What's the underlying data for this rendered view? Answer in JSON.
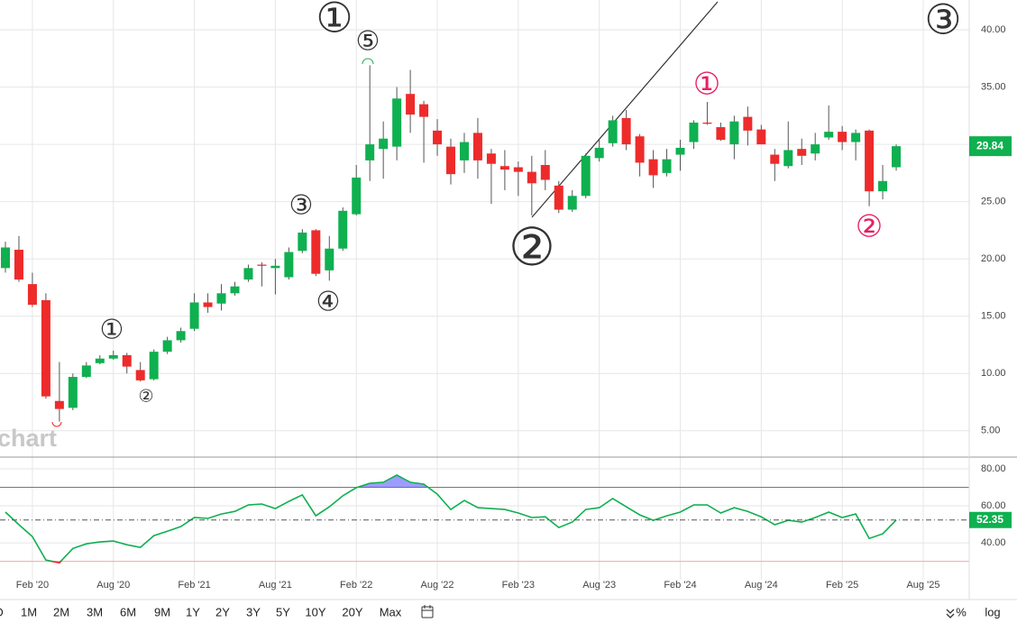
{
  "chart_data": {
    "type": "candlestick",
    "categories": [
      null,
      null,
      "Feb '20",
      null,
      null,
      null,
      null,
      null,
      "Aug '20",
      null,
      null,
      null,
      null,
      null,
      "Feb '21",
      null,
      null,
      null,
      null,
      null,
      "Aug '21",
      null,
      null,
      null,
      null,
      null,
      "Feb '22",
      null,
      null,
      null,
      null,
      null,
      "Aug '22",
      null,
      null,
      null,
      null,
      null,
      "Feb '23",
      null,
      null,
      null,
      null,
      null,
      "Aug '23",
      null,
      null,
      null,
      null,
      null,
      "Feb '24",
      null,
      null,
      null,
      null,
      null,
      "Aug '24",
      null,
      null,
      null,
      null,
      null,
      "Feb '25",
      null,
      null,
      null,
      null,
      null,
      "Aug '25"
    ],
    "open": [
      19.2,
      20.8,
      17.8,
      16.4,
      7.6,
      7.0,
      9.7,
      10.9,
      11.3,
      11.6,
      10.3,
      9.5,
      11.9,
      12.9,
      13.9,
      16.2,
      16.1,
      17.0,
      18.2,
      19.5,
      19.2,
      18.4,
      20.7,
      22.5,
      19.0,
      20.9,
      23.9,
      28.6,
      29.6,
      29.8,
      34.4,
      33.5,
      31.2,
      29.8,
      28.6,
      31.0,
      29.2,
      28.1,
      28.0,
      27.6,
      28.2,
      26.4,
      24.3,
      25.5,
      28.8,
      30.1,
      32.3,
      30.7,
      28.7,
      27.5,
      29.1,
      30.2,
      31.9,
      31.5,
      30.0,
      32.4,
      31.3,
      29.1,
      28.1,
      29.6,
      29.2,
      30.6,
      31.1,
      30.2,
      31.2,
      25.9,
      28.0,
      null,
      null
    ],
    "high": [
      21.5,
      22.0,
      18.8,
      17.0,
      11.0,
      10.0,
      11.0,
      11.6,
      12.0,
      11.8,
      11.0,
      12.1,
      13.2,
      14.0,
      17.0,
      17.0,
      17.8,
      18.0,
      19.5,
      19.7,
      20.0,
      21.0,
      22.6,
      22.6,
      22.0,
      24.5,
      28.2,
      36.9,
      32.0,
      35.0,
      36.5,
      33.8,
      32.2,
      30.5,
      31.0,
      32.3,
      29.6,
      29.5,
      28.5,
      29.0,
      29.5,
      26.8,
      26.0,
      29.2,
      30.4,
      32.5,
      33.0,
      30.9,
      29.5,
      29.6,
      30.4,
      32.1,
      33.7,
      31.9,
      32.5,
      33.3,
      31.7,
      29.6,
      32.0,
      30.5,
      31.0,
      33.4,
      31.6,
      31.3,
      31.3,
      28.2,
      30.0,
      null,
      null
    ],
    "low": [
      18.8,
      18.0,
      15.8,
      7.8,
      5.8,
      6.8,
      9.6,
      10.8,
      11.2,
      10.0,
      9.3,
      9.4,
      11.7,
      12.7,
      13.7,
      15.3,
      15.5,
      16.8,
      18.0,
      17.6,
      16.9,
      18.2,
      20.5,
      18.5,
      18.1,
      20.7,
      23.8,
      26.8,
      27.0,
      28.6,
      31.0,
      28.4,
      29.0,
      26.5,
      27.5,
      27.0,
      24.8,
      26.0,
      25.5,
      23.8,
      26.0,
      24.0,
      24.1,
      25.3,
      28.5,
      29.8,
      29.5,
      27.2,
      26.2,
      27.2,
      27.7,
      29.6,
      31.7,
      30.3,
      28.7,
      29.9,
      30.0,
      26.8,
      27.9,
      28.2,
      28.6,
      30.4,
      29.5,
      28.6,
      24.6,
      25.2,
      27.7,
      null,
      null
    ],
    "close": [
      21.0,
      18.2,
      16.0,
      8.0,
      6.9,
      9.7,
      10.7,
      11.3,
      11.6,
      10.6,
      9.4,
      11.9,
      12.9,
      13.7,
      16.2,
      15.8,
      17.0,
      17.6,
      19.2,
      19.4,
      19.4,
      20.6,
      22.3,
      18.7,
      20.9,
      24.2,
      27.1,
      30.0,
      30.5,
      34.0,
      32.6,
      32.4,
      30.0,
      27.4,
      30.2,
      28.6,
      28.3,
      27.8,
      27.6,
      26.6,
      26.9,
      24.3,
      25.5,
      29.0,
      29.7,
      32.1,
      30.0,
      28.4,
      27.3,
      28.7,
      29.7,
      31.9,
      31.8,
      30.4,
      32.0,
      31.2,
      30.0,
      28.3,
      29.5,
      29.0,
      30.0,
      31.1,
      30.2,
      31.0,
      25.9,
      26.8,
      29.84,
      null,
      null
    ],
    "up_color": "#0fb050",
    "down_color": "#ee2b2b",
    "ylim": [
      2.7,
      42.6
    ],
    "yticks": [
      {
        "value": 5,
        "label": "5.00"
      },
      {
        "value": 10,
        "label": "10.00"
      },
      {
        "value": 15,
        "label": "15.00"
      },
      {
        "value": 20,
        "label": "20.00"
      },
      {
        "value": 25,
        "label": "25.00"
      },
      {
        "value": 30,
        "label": "30.00"
      },
      {
        "value": 35,
        "label": "35.00"
      },
      {
        "value": 40,
        "label": "40.00"
      }
    ],
    "grid": true,
    "watermark": "chart",
    "rsi": {
      "values": [
        56.6,
        49.8,
        43.4,
        30.7,
        29.3,
        37.0,
        39.5,
        40.5,
        41.0,
        39.0,
        37.6,
        43.9,
        46.3,
        48.8,
        53.7,
        53.2,
        55.6,
        57.0,
        60.5,
        61.0,
        58.5,
        62.4,
        65.9,
        54.6,
        59.5,
        65.4,
        69.8,
        72.2,
        72.7,
        76.6,
        72.7,
        71.7,
        66.3,
        58.0,
        62.9,
        59.0,
        58.5,
        58.0,
        56.1,
        53.7,
        54.1,
        48.3,
        51.2,
        58.0,
        59.0,
        63.9,
        59.5,
        55.1,
        52.2,
        54.6,
        56.6,
        60.5,
        60.5,
        56.1,
        59.0,
        57.0,
        54.1,
        49.8,
        52.2,
        51.2,
        53.7,
        56.6,
        53.7,
        55.6,
        42.4,
        44.9,
        52.35,
        null,
        null
      ],
      "color": "#0fb050",
      "ylim": [
        24,
        86.3
      ],
      "yticks": [
        {
          "value": 40,
          "label": "40.00"
        },
        {
          "value": 60,
          "label": "60.00"
        },
        {
          "value": 80,
          "label": "80.00"
        }
      ],
      "overbought": 70,
      "oversold": 30
    }
  },
  "annotations": [
    "①",
    "⑤",
    "③",
    "④",
    "①",
    "②",
    "②",
    "③",
    "①",
    "②"
  ],
  "toolbar": {
    "ranges": [
      "D",
      "1M",
      "2M",
      "3M",
      "6M",
      "9M",
      "1Y",
      "2Y",
      "3Y",
      "5Y",
      "10Y",
      "20Y",
      "Max"
    ],
    "percent": "%",
    "log": "log"
  }
}
